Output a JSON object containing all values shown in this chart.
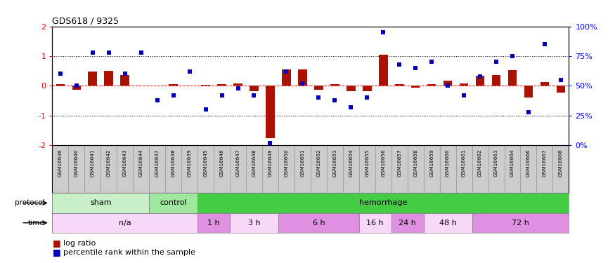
{
  "title": "GDS618 / 9325",
  "samples": [
    "GSM16636",
    "GSM16640",
    "GSM16641",
    "GSM16642",
    "GSM16643",
    "GSM16644",
    "GSM16637",
    "GSM16638",
    "GSM16639",
    "GSM16645",
    "GSM16646",
    "GSM16647",
    "GSM16648",
    "GSM16649",
    "GSM16650",
    "GSM16651",
    "GSM16652",
    "GSM16653",
    "GSM16654",
    "GSM16655",
    "GSM16656",
    "GSM16657",
    "GSM16658",
    "GSM16659",
    "GSM16660",
    "GSM16661",
    "GSM16662",
    "GSM16663",
    "GSM16664",
    "GSM16666",
    "GSM16667",
    "GSM16668"
  ],
  "log_ratio": [
    0.05,
    -0.12,
    0.47,
    0.5,
    0.37,
    0.02,
    0.02,
    0.05,
    0.02,
    0.03,
    0.05,
    0.08,
    -0.17,
    -1.75,
    0.55,
    0.55,
    -0.12,
    0.05,
    -0.17,
    -0.17,
    1.05,
    0.05,
    -0.05,
    0.05,
    0.18,
    0.08,
    0.35,
    0.37,
    0.52,
    -0.4,
    0.12,
    -0.22
  ],
  "pct_vals": [
    60,
    50,
    78,
    78,
    60,
    78,
    38,
    42,
    62,
    30,
    42,
    48,
    42,
    2,
    62,
    52,
    40,
    38,
    32,
    40,
    95,
    68,
    65,
    70,
    50,
    42,
    58,
    70,
    75,
    28,
    85,
    55
  ],
  "ylim": [
    -2,
    2
  ],
  "y2lim": [
    0,
    100
  ],
  "protocol_groups": [
    {
      "label": "sham",
      "start": 0,
      "end": 6,
      "color": "#c8f0c8"
    },
    {
      "label": "control",
      "start": 6,
      "end": 9,
      "color": "#a0e8a0"
    },
    {
      "label": "hemorrhage",
      "start": 9,
      "end": 32,
      "color": "#44cc44"
    }
  ],
  "time_groups": [
    {
      "label": "n/a",
      "start": 0,
      "end": 9,
      "color": "#f8d8f8"
    },
    {
      "label": "1 h",
      "start": 9,
      "end": 11,
      "color": "#f8d8f8"
    },
    {
      "label": "3 h",
      "start": 11,
      "end": 14,
      "color": "#e090e0"
    },
    {
      "label": "6 h",
      "start": 14,
      "end": 19,
      "color": "#f8d8f8"
    },
    {
      "label": "16 h",
      "start": 19,
      "end": 21,
      "color": "#e090e0"
    },
    {
      "label": "24 h",
      "start": 21,
      "end": 23,
      "color": "#f8d8f8"
    },
    {
      "label": "48 h",
      "start": 23,
      "end": 26,
      "color": "#e090e0"
    },
    {
      "label": "72 h",
      "start": 26,
      "end": 32,
      "color": "#f8d8f8"
    }
  ],
  "bar_color": "#aa1100",
  "dot_color": "#0000bb",
  "bar_width": 0.55
}
